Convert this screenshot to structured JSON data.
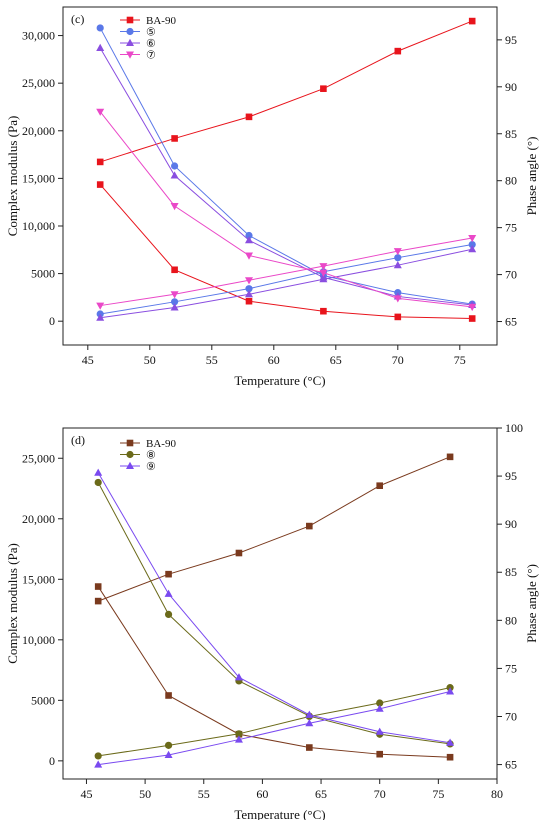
{
  "chart_data": [
    {
      "type": "line",
      "panel_label": "(c)",
      "xlabel": "Temperature (°C)",
      "ylabel": "Complex modulus (Pa)",
      "ylabel_right": "Phase angle (°)",
      "xlim": [
        43,
        78
      ],
      "ylim": [
        -2500,
        33000
      ],
      "ylim_right": [
        62.5,
        98.5
      ],
      "x_ticks": [
        45,
        50,
        55,
        60,
        65,
        70,
        75
      ],
      "x_tick_labels": [
        "45",
        "50",
        "55",
        "60",
        "65",
        "70",
        "75"
      ],
      "y_ticks": [
        0,
        5000,
        10000,
        15000,
        20000,
        25000,
        30000
      ],
      "y_tick_labels": [
        "0",
        "5000",
        "10,000",
        "15,000",
        "20,000",
        "25,000",
        "30,000"
      ],
      "y_right_ticks": [
        65,
        70,
        75,
        80,
        85,
        90,
        95
      ],
      "y_right_tick_labels": [
        "65",
        "70",
        "75",
        "80",
        "85",
        "90",
        "95"
      ],
      "legend_placement": "top-left",
      "x": [
        46,
        52,
        58,
        64,
        70,
        76
      ],
      "series": [
        {
          "name": "BA-90",
          "color": "#e8141c",
          "marker": "square",
          "modulus": [
            14350,
            5400,
            2100,
            1050,
            450,
            280
          ],
          "phase": [
            82.0,
            84.5,
            86.8,
            89.8,
            93.8,
            97.0
          ]
        },
        {
          "name": "⑤",
          "color": "#5a78e8",
          "marker": "circle",
          "modulus": [
            30800,
            16300,
            9000,
            4800,
            3000,
            1800
          ],
          "phase": [
            65.8,
            67.1,
            68.5,
            70.3,
            71.8,
            73.2
          ]
        },
        {
          "name": "⑥",
          "color": "#8a4ee0",
          "marker": "triangle-up",
          "modulus": [
            28700,
            15300,
            8500,
            4600,
            2600,
            1700
          ],
          "phase": [
            65.4,
            66.5,
            67.9,
            69.5,
            71.0,
            72.7
          ]
        },
        {
          "name": "⑦",
          "color": "#ea48c8",
          "marker": "triangle-down",
          "modulus": [
            22000,
            12100,
            6900,
            5100,
            2400,
            1500
          ],
          "phase": [
            66.7,
            67.9,
            69.4,
            70.9,
            72.5,
            73.9
          ]
        }
      ]
    },
    {
      "type": "line",
      "panel_label": "(d)",
      "xlabel": "Temperature (°C)",
      "ylabel": "Complex modulus (Pa)",
      "ylabel_right": "Phase angle (°)",
      "xlim": [
        43,
        80
      ],
      "ylim": [
        -1500,
        27500
      ],
      "ylim_right": [
        63.5,
        100
      ],
      "x_ticks": [
        45,
        50,
        55,
        60,
        65,
        70,
        75,
        80
      ],
      "x_tick_labels": [
        "45",
        "50",
        "55",
        "60",
        "65",
        "70",
        "75",
        "80"
      ],
      "y_ticks": [
        0,
        5000,
        10000,
        15000,
        20000,
        25000
      ],
      "y_tick_labels": [
        "0",
        "5000",
        "10,000",
        "15,000",
        "20,000",
        "25,000"
      ],
      "y_right_ticks": [
        65,
        70,
        75,
        80,
        85,
        90,
        95,
        100
      ],
      "y_right_tick_labels": [
        "65",
        "70",
        "75",
        "80",
        "85",
        "90",
        "95",
        "100"
      ],
      "legend_placement": "top-left",
      "x": [
        46,
        52,
        58,
        64,
        70,
        76
      ],
      "series": [
        {
          "name": "BA-90",
          "color": "#7a3a1e",
          "marker": "square",
          "modulus": [
            14400,
            5400,
            2200,
            1100,
            550,
            300
          ],
          "phase": [
            82.0,
            84.8,
            87.0,
            89.8,
            94.0,
            97.0
          ]
        },
        {
          "name": "⑧",
          "color": "#6b6a1a",
          "marker": "circle",
          "modulus": [
            23000,
            12100,
            6600,
            3700,
            2200,
            1400
          ],
          "phase": [
            65.9,
            67.0,
            68.2,
            70.0,
            71.4,
            73.0
          ]
        },
        {
          "name": "⑨",
          "color": "#7a4af0",
          "marker": "triangle-up",
          "modulus": [
            23800,
            13800,
            6900,
            3800,
            2400,
            1500
          ],
          "phase": [
            65.0,
            66.0,
            67.6,
            69.3,
            70.8,
            72.6
          ]
        }
      ]
    }
  ]
}
